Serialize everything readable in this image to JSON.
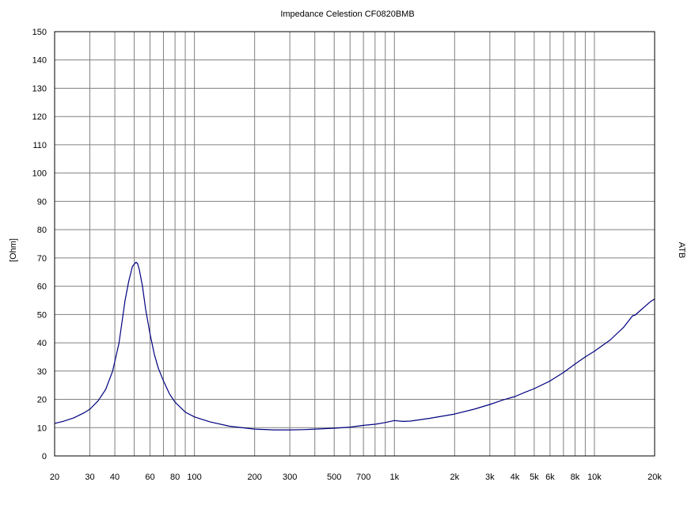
{
  "chart_data": {
    "type": "line",
    "title": "Impedance  Celestion CF0820BMB",
    "ylabel": "[Ohm]",
    "side_label": "ATB",
    "x_scale": "log",
    "xlim": [
      20,
      20000
    ],
    "ylim": [
      0,
      150
    ],
    "grid": true,
    "colors": {
      "series": "#000080",
      "grid": "#808080",
      "frame": "#000000"
    },
    "x_tick_labels": [
      {
        "value": 20,
        "label": "20"
      },
      {
        "value": 30,
        "label": "30"
      },
      {
        "value": 40,
        "label": "40"
      },
      {
        "value": 60,
        "label": "60"
      },
      {
        "value": 80,
        "label": "80"
      },
      {
        "value": 100,
        "label": "100"
      },
      {
        "value": 200,
        "label": "200"
      },
      {
        "value": 300,
        "label": "300"
      },
      {
        "value": 500,
        "label": "500"
      },
      {
        "value": 700,
        "label": "700"
      },
      {
        "value": 1000,
        "label": "1k"
      },
      {
        "value": 2000,
        "label": "2k"
      },
      {
        "value": 3000,
        "label": "3k"
      },
      {
        "value": 4000,
        "label": "4k"
      },
      {
        "value": 5000,
        "label": "5k"
      },
      {
        "value": 6000,
        "label": "6k"
      },
      {
        "value": 8000,
        "label": "8k"
      },
      {
        "value": 10000,
        "label": "10k"
      },
      {
        "value": 20000,
        "label": "20k"
      }
    ],
    "x_gridlines": [
      30,
      40,
      50,
      60,
      70,
      80,
      90,
      100,
      200,
      300,
      400,
      500,
      600,
      700,
      800,
      900,
      1000,
      2000,
      3000,
      4000,
      5000,
      6000,
      7000,
      8000,
      9000,
      10000
    ],
    "y_ticks": [
      0,
      10,
      20,
      30,
      40,
      50,
      60,
      70,
      80,
      90,
      100,
      110,
      120,
      130,
      140,
      150
    ],
    "series": [
      {
        "x": [
          20,
          22,
          25,
          28,
          30,
          33,
          36,
          39,
          42,
          45,
          47,
          49,
          51,
          52,
          53,
          55,
          57,
          60,
          63,
          66,
          70,
          75,
          80,
          90,
          100,
          120,
          150,
          200,
          250,
          300,
          350,
          400,
          500,
          600,
          700,
          800,
          900,
          1000,
          1100,
          1200,
          1500,
          2000,
          2500,
          3000,
          3500,
          4000,
          4500,
          5000,
          6000,
          7000,
          8000,
          9000,
          10000,
          12000,
          14000,
          15500,
          16000,
          17000,
          18000,
          19000,
          20000
        ],
        "y": [
          11.5,
          12.2,
          13.5,
          15.2,
          16.5,
          19.5,
          23.5,
          30,
          40,
          55,
          62,
          67,
          68.5,
          68,
          66,
          60,
          52,
          43,
          36,
          31,
          26.5,
          22,
          19,
          15.5,
          13.8,
          12,
          10.5,
          9.5,
          9.2,
          9.2,
          9.3,
          9.5,
          9.8,
          10.2,
          10.8,
          11.2,
          11.8,
          12.5,
          12.2,
          12.3,
          13.3,
          14.8,
          16.5,
          18.2,
          19.8,
          21,
          22.5,
          23.8,
          26.5,
          29.5,
          32.5,
          35,
          37,
          41,
          45.5,
          49.5,
          49.8,
          51.5,
          53,
          54.5,
          55.5
        ]
      }
    ]
  }
}
